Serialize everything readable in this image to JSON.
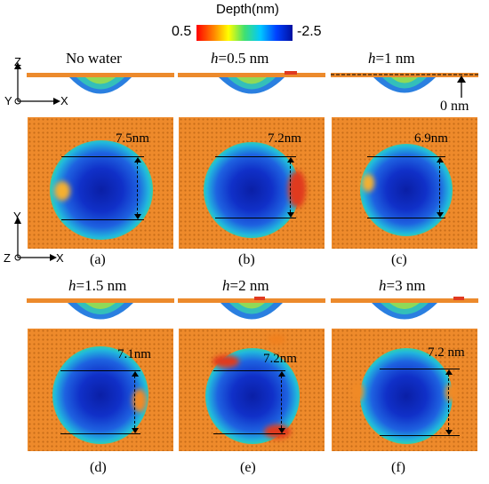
{
  "colorbar": {
    "title": "Depth(nm)",
    "min_label": "0.5",
    "max_label": "-2.5",
    "colors": [
      "#ff0000",
      "#ff8000",
      "#ffff00",
      "#40e070",
      "#00c8ff",
      "#0040ff",
      "#0010a0"
    ]
  },
  "axes_top": {
    "z": "Z",
    "y": "Y",
    "x": "X"
  },
  "axes_mid": {
    "y": "Y",
    "z": "Z",
    "x": "X"
  },
  "zero_label": "0 nm",
  "panels": [
    {
      "title_prefix": "",
      "title_h": "",
      "title_value": "No water",
      "measure": "7.5nm",
      "label": "(a)"
    },
    {
      "title_prefix": "h",
      "title_h": "=0.5 nm",
      "title_value": "",
      "measure": "7.2nm",
      "label": "(b)"
    },
    {
      "title_prefix": "h",
      "title_h": "=1 nm",
      "title_value": "",
      "measure": "6.9nm",
      "label": "(c)"
    },
    {
      "title_prefix": "h",
      "title_h": "=1.5 nm",
      "title_value": "",
      "measure": "7.1nm",
      "label": "(d)"
    },
    {
      "title_prefix": "h",
      "title_h": "=2 nm",
      "title_value": "",
      "measure": "7.2nm",
      "label": "(e)"
    },
    {
      "title_prefix": "h",
      "title_h": "=3 nm",
      "title_value": "",
      "measure": "7.2 nm",
      "label": "(f)"
    }
  ]
}
